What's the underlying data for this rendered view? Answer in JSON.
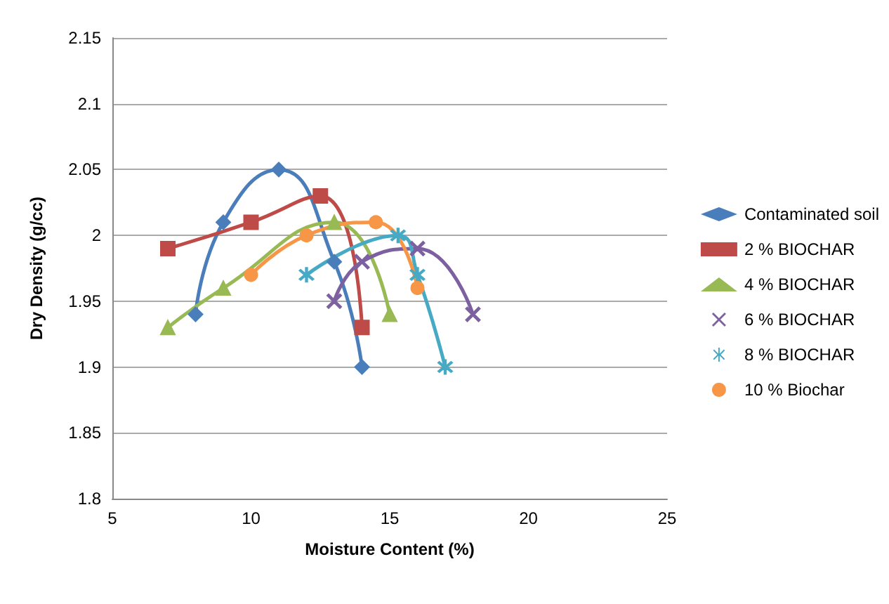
{
  "chart_data": {
    "type": "line",
    "xlabel": "Moisture Content (%)",
    "ylabel": "Dry Density (g/cc)",
    "xlim": [
      5,
      25
    ],
    "xticks": [
      5,
      10,
      15,
      20,
      25
    ],
    "ylim": [
      1.8,
      2.15
    ],
    "yticks": [
      1.8,
      1.85,
      1.9,
      1.95,
      2,
      2.05,
      2.1,
      2.15
    ],
    "grid": "y",
    "legend": "right",
    "series": [
      {
        "name": "Contaminated soil",
        "color": "#4a7ebb",
        "marker": "diamond",
        "x": [
          8,
          9,
          11,
          13,
          14
        ],
        "values": [
          1.94,
          2.01,
          2.05,
          1.98,
          1.9
        ]
      },
      {
        "name": "2 % BIOCHAR",
        "color": "#be4b48",
        "marker": "square",
        "x": [
          7,
          10,
          12.5,
          14
        ],
        "values": [
          1.99,
          2.01,
          2.03,
          1.93
        ]
      },
      {
        "name": "4 % BIOCHAR",
        "color": "#98b954",
        "marker": "triangle",
        "x": [
          7,
          9,
          13,
          15
        ],
        "values": [
          1.93,
          1.96,
          2.01,
          1.94
        ]
      },
      {
        "name": "6 % BIOCHAR",
        "color": "#7d60a0",
        "marker": "cross",
        "x": [
          13,
          14,
          16,
          18
        ],
        "values": [
          1.95,
          1.98,
          1.99,
          1.94
        ]
      },
      {
        "name": "8 % BIOCHAR",
        "color": "#46aac5",
        "marker": "star",
        "x": [
          12,
          15.3,
          16,
          17
        ],
        "values": [
          1.97,
          2.0,
          1.97,
          1.9
        ]
      },
      {
        "name": "10 % Biochar",
        "color": "#f79646",
        "marker": "circle",
        "x": [
          10,
          12,
          14.5,
          16
        ],
        "values": [
          1.97,
          2.0,
          2.01,
          1.96
        ]
      }
    ]
  }
}
